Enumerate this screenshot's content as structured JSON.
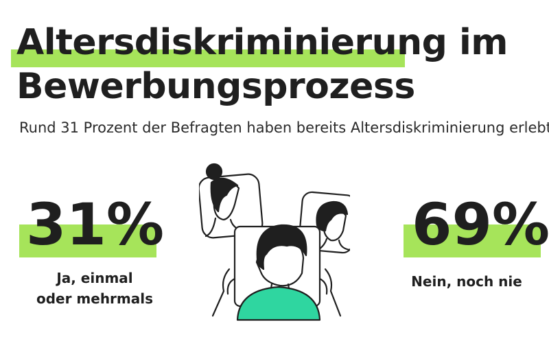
{
  "title": {
    "line1_highlighted": "Altersdiskriminierung",
    "line1_rest": "im",
    "line2": "Bewerbungsprozess"
  },
  "subtitle": "Rund 31 Prozent der Befragten haben bereits Altersdiskriminierung erlebt.",
  "stats": {
    "yes": {
      "value": "31%",
      "label_line1": "Ja, einmal",
      "label_line2": "oder mehrmals"
    },
    "no": {
      "value": "69%",
      "label_line1": "Nein, noch nie"
    }
  },
  "colors": {
    "highlight": "#a6e45a",
    "accent": "#2fd6a0",
    "text": "#1f1f1f"
  },
  "illustration": "video-call-people-icon"
}
